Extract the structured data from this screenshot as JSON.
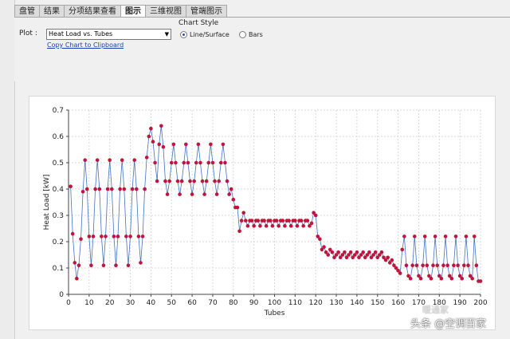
{
  "tabs": [
    "盘管",
    "结果",
    "分项结果查看",
    "图示",
    "三维视图",
    "管端图示"
  ],
  "active_tab": 3,
  "controls": {
    "plot_label": "Plot :",
    "plot_select_value": "Heat Load vs. Tubes",
    "copy_link": "Copy Chart to Clipboard",
    "chart_style_label": "Chart Style",
    "style_options": [
      "Line/Surface",
      "Bars"
    ],
    "style_selected": 0
  },
  "colors": {
    "line": "#4472c4",
    "marker": "#c0143c"
  },
  "chart_data": {
    "type": "line",
    "xlabel": "Tubes",
    "ylabel": "Heat Load [kW]",
    "xlim": [
      0,
      200
    ],
    "ylim": [
      0,
      0.7
    ],
    "xticks": [
      0,
      10,
      20,
      30,
      40,
      50,
      60,
      70,
      80,
      90,
      100,
      110,
      120,
      130,
      140,
      150,
      160,
      170,
      180,
      190,
      200
    ],
    "yticks": [
      0,
      0.1,
      0.2,
      0.3,
      0.4,
      0.5,
      0.6,
      0.7
    ],
    "grid": true,
    "series": [
      {
        "values": [
          [
            1,
            0.41
          ],
          [
            2,
            0.23
          ],
          [
            3,
            0.12
          ],
          [
            4,
            0.06
          ],
          [
            5,
            0.11
          ],
          [
            6,
            0.21
          ],
          [
            7,
            0.39
          ],
          [
            8,
            0.51
          ],
          [
            9,
            0.4
          ],
          [
            10,
            0.22
          ],
          [
            11,
            0.11
          ],
          [
            12,
            0.22
          ],
          [
            13,
            0.4
          ],
          [
            14,
            0.51
          ],
          [
            15,
            0.4
          ],
          [
            16,
            0.22
          ],
          [
            17,
            0.11
          ],
          [
            18,
            0.22
          ],
          [
            19,
            0.4
          ],
          [
            20,
            0.51
          ],
          [
            21,
            0.4
          ],
          [
            22,
            0.22
          ],
          [
            23,
            0.11
          ],
          [
            24,
            0.22
          ],
          [
            25,
            0.4
          ],
          [
            26,
            0.51
          ],
          [
            27,
            0.4
          ],
          [
            28,
            0.22
          ],
          [
            29,
            0.11
          ],
          [
            30,
            0.22
          ],
          [
            31,
            0.4
          ],
          [
            32,
            0.51
          ],
          [
            33,
            0.4
          ],
          [
            34,
            0.22
          ],
          [
            35,
            0.12
          ],
          [
            36,
            0.22
          ],
          [
            37,
            0.4
          ],
          [
            38,
            0.52
          ],
          [
            39,
            0.6
          ],
          [
            40,
            0.63
          ],
          [
            41,
            0.58
          ],
          [
            42,
            0.5
          ],
          [
            43,
            0.43
          ],
          [
            44,
            0.57
          ],
          [
            45,
            0.64
          ],
          [
            46,
            0.56
          ],
          [
            47,
            0.43
          ],
          [
            48,
            0.38
          ],
          [
            49,
            0.43
          ],
          [
            50,
            0.5
          ],
          [
            51,
            0.57
          ],
          [
            52,
            0.5
          ],
          [
            53,
            0.43
          ],
          [
            54,
            0.38
          ],
          [
            55,
            0.43
          ],
          [
            56,
            0.5
          ],
          [
            57,
            0.57
          ],
          [
            58,
            0.5
          ],
          [
            59,
            0.43
          ],
          [
            60,
            0.38
          ],
          [
            61,
            0.43
          ],
          [
            62,
            0.5
          ],
          [
            63,
            0.57
          ],
          [
            64,
            0.5
          ],
          [
            65,
            0.43
          ],
          [
            66,
            0.38
          ],
          [
            67,
            0.43
          ],
          [
            68,
            0.5
          ],
          [
            69,
            0.57
          ],
          [
            70,
            0.5
          ],
          [
            71,
            0.43
          ],
          [
            72,
            0.38
          ],
          [
            73,
            0.43
          ],
          [
            74,
            0.5
          ],
          [
            75,
            0.57
          ],
          [
            76,
            0.5
          ],
          [
            77,
            0.43
          ],
          [
            78,
            0.38
          ],
          [
            79,
            0.4
          ],
          [
            80,
            0.36
          ],
          [
            81,
            0.33
          ],
          [
            82,
            0.33
          ],
          [
            83,
            0.24
          ],
          [
            84,
            0.28
          ],
          [
            85,
            0.31
          ],
          [
            86,
            0.28
          ],
          [
            87,
            0.26
          ],
          [
            88,
            0.28
          ],
          [
            89,
            0.28
          ],
          [
            90,
            0.26
          ],
          [
            91,
            0.28
          ],
          [
            92,
            0.28
          ],
          [
            93,
            0.26
          ],
          [
            94,
            0.28
          ],
          [
            95,
            0.28
          ],
          [
            96,
            0.26
          ],
          [
            97,
            0.28
          ],
          [
            98,
            0.28
          ],
          [
            99,
            0.26
          ],
          [
            100,
            0.28
          ],
          [
            101,
            0.28
          ],
          [
            102,
            0.26
          ],
          [
            103,
            0.28
          ],
          [
            104,
            0.28
          ],
          [
            105,
            0.26
          ],
          [
            106,
            0.28
          ],
          [
            107,
            0.28
          ],
          [
            108,
            0.26
          ],
          [
            109,
            0.28
          ],
          [
            110,
            0.28
          ],
          [
            111,
            0.26
          ],
          [
            112,
            0.28
          ],
          [
            113,
            0.28
          ],
          [
            114,
            0.26
          ],
          [
            115,
            0.28
          ],
          [
            116,
            0.28
          ],
          [
            117,
            0.26
          ],
          [
            118,
            0.27
          ],
          [
            119,
            0.31
          ],
          [
            120,
            0.3
          ],
          [
            121,
            0.22
          ],
          [
            122,
            0.21
          ],
          [
            123,
            0.17
          ],
          [
            124,
            0.18
          ],
          [
            125,
            0.16
          ],
          [
            126,
            0.15
          ],
          [
            127,
            0.17
          ],
          [
            128,
            0.16
          ],
          [
            129,
            0.14
          ],
          [
            130,
            0.15
          ],
          [
            131,
            0.16
          ],
          [
            132,
            0.14
          ],
          [
            133,
            0.15
          ],
          [
            134,
            0.16
          ],
          [
            135,
            0.14
          ],
          [
            136,
            0.15
          ],
          [
            137,
            0.16
          ],
          [
            138,
            0.14
          ],
          [
            139,
            0.15
          ],
          [
            140,
            0.16
          ],
          [
            141,
            0.14
          ],
          [
            142,
            0.15
          ],
          [
            143,
            0.16
          ],
          [
            144,
            0.14
          ],
          [
            145,
            0.15
          ],
          [
            146,
            0.16
          ],
          [
            147,
            0.14
          ],
          [
            148,
            0.15
          ],
          [
            149,
            0.16
          ],
          [
            150,
            0.14
          ],
          [
            151,
            0.15
          ],
          [
            152,
            0.16
          ],
          [
            153,
            0.14
          ],
          [
            154,
            0.13
          ],
          [
            155,
            0.14
          ],
          [
            156,
            0.12
          ],
          [
            157,
            0.13
          ],
          [
            158,
            0.11
          ],
          [
            159,
            0.1
          ],
          [
            160,
            0.09
          ],
          [
            161,
            0.08
          ],
          [
            162,
            0.17
          ],
          [
            163,
            0.22
          ],
          [
            164,
            0.11
          ],
          [
            165,
            0.07
          ],
          [
            166,
            0.06
          ],
          [
            167,
            0.11
          ],
          [
            168,
            0.22
          ],
          [
            169,
            0.11
          ],
          [
            170,
            0.07
          ],
          [
            171,
            0.06
          ],
          [
            172,
            0.11
          ],
          [
            173,
            0.22
          ],
          [
            174,
            0.11
          ],
          [
            175,
            0.07
          ],
          [
            176,
            0.06
          ],
          [
            177,
            0.11
          ],
          [
            178,
            0.22
          ],
          [
            179,
            0.11
          ],
          [
            180,
            0.07
          ],
          [
            181,
            0.06
          ],
          [
            182,
            0.11
          ],
          [
            183,
            0.22
          ],
          [
            184,
            0.11
          ],
          [
            185,
            0.07
          ],
          [
            186,
            0.06
          ],
          [
            187,
            0.11
          ],
          [
            188,
            0.22
          ],
          [
            189,
            0.11
          ],
          [
            190,
            0.07
          ],
          [
            191,
            0.06
          ],
          [
            192,
            0.11
          ],
          [
            193,
            0.22
          ],
          [
            194,
            0.11
          ],
          [
            195,
            0.07
          ],
          [
            196,
            0.06
          ],
          [
            197,
            0.22
          ],
          [
            198,
            0.11
          ],
          [
            199,
            0.05
          ],
          [
            200,
            0.05
          ]
        ]
      }
    ]
  },
  "watermark": {
    "text": "头条 @空调百家",
    "text2": "暖通家"
  }
}
